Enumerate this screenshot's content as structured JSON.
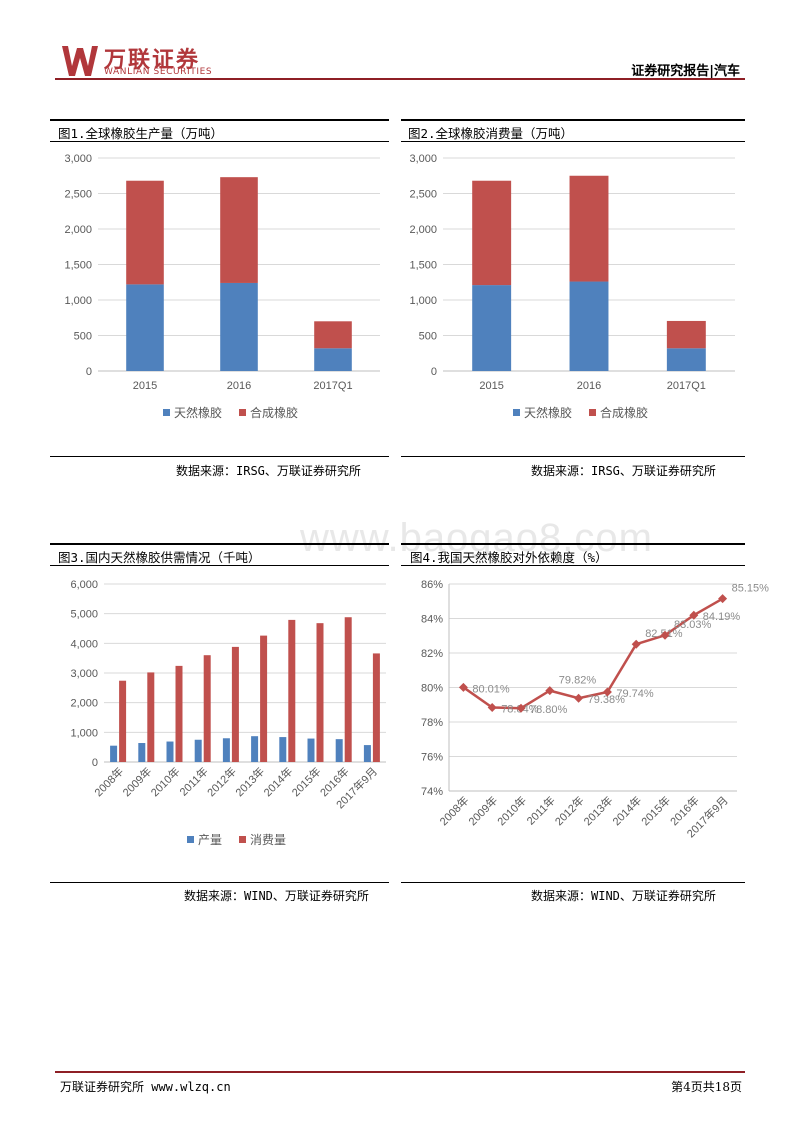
{
  "header": {
    "logo_cn": "万联证券",
    "logo_en": "WANLIAN SECURITIES",
    "report_type": "证券研究报告|汽车"
  },
  "watermark": "www.baogao8.com",
  "figures": [
    {
      "title": "图1.全球橡胶生产量（万吨）",
      "source": "数据来源：IRSG、万联证券研究所",
      "chart_data": {
        "type": "bar",
        "stacked": true,
        "categories": [
          "2015",
          "2016",
          "2017Q1"
        ],
        "series": [
          {
            "name": "天然橡胶",
            "values": [
              1220,
              1240,
              320
            ],
            "color": "#4f81bd"
          },
          {
            "name": "合成橡胶",
            "values": [
              1460,
              1490,
              380
            ],
            "color": "#c0504d"
          }
        ],
        "ylim": [
          0,
          3000
        ],
        "yticks": [
          "0",
          "500",
          "1,000",
          "1,500",
          "2,000",
          "2,500",
          "3,000"
        ],
        "legend": "bottom",
        "grid": true
      }
    },
    {
      "title": "图2.全球橡胶消费量（万吨）",
      "source": "数据来源：IRSG、万联证券研究所",
      "chart_data": {
        "type": "bar",
        "stacked": true,
        "categories": [
          "2015",
          "2016",
          "2017Q1"
        ],
        "series": [
          {
            "name": "天然橡胶",
            "values": [
              1210,
              1260,
              320
            ],
            "color": "#4f81bd"
          },
          {
            "name": "合成橡胶",
            "values": [
              1470,
              1490,
              385
            ],
            "color": "#c0504d"
          }
        ],
        "ylim": [
          0,
          3000
        ],
        "yticks": [
          "0",
          "500",
          "1,000",
          "1,500",
          "2,000",
          "2,500",
          "3,000"
        ],
        "legend": "bottom",
        "grid": true
      }
    },
    {
      "title": "图3.国内天然橡胶供需情况（千吨）",
      "source": "数据来源：WIND、万联证券研究所",
      "chart_data": {
        "type": "bar",
        "categories": [
          "2008年",
          "2009年",
          "2010年",
          "2011年",
          "2012年",
          "2013年",
          "2014年",
          "2015年",
          "2016年",
          "2017年9月"
        ],
        "series": [
          {
            "name": "产量",
            "values": [
              550,
              640,
              690,
              750,
              800,
              870,
              840,
              790,
              770,
              570
            ],
            "color": "#4f81bd"
          },
          {
            "name": "消费量",
            "values": [
              2740,
              3020,
              3240,
              3600,
              3880,
              4260,
              4790,
              4680,
              4880,
              3660
            ],
            "color": "#c0504d"
          }
        ],
        "ylim": [
          0,
          6000
        ],
        "yticks": [
          "0",
          "1,000",
          "2,000",
          "3,000",
          "4,000",
          "5,000",
          "6,000"
        ],
        "legend": "bottom",
        "grid": true
      }
    },
    {
      "title": "图4.我国天然橡胶对外依赖度（%）",
      "source": "数据来源：WIND、万联证券研究所",
      "chart_data": {
        "type": "line",
        "categories": [
          "2008年",
          "2009年",
          "2010年",
          "2011年",
          "2012年",
          "2013年",
          "2014年",
          "2015年",
          "2016年",
          "2017年9月"
        ],
        "series": [
          {
            "name": "",
            "values": [
              80.01,
              78.84,
              78.8,
              79.82,
              79.38,
              79.74,
              82.51,
              83.03,
              84.19,
              85.15
            ],
            "color": "#c0504d"
          }
        ],
        "data_labels": [
          "80.01%",
          "78.84%",
          "78.80%",
          "79.82%",
          "79.38%",
          "79.74%",
          "82.51%",
          "83.03%",
          "84.19%",
          "85.15%"
        ],
        "ylim": [
          74,
          86
        ],
        "yticks": [
          "74%",
          "76%",
          "78%",
          "80%",
          "82%",
          "84%",
          "86%"
        ],
        "grid": true
      }
    }
  ],
  "footer": {
    "left": "万联证券研究所 www.wlzq.cn",
    "right": "第4页共18页"
  }
}
